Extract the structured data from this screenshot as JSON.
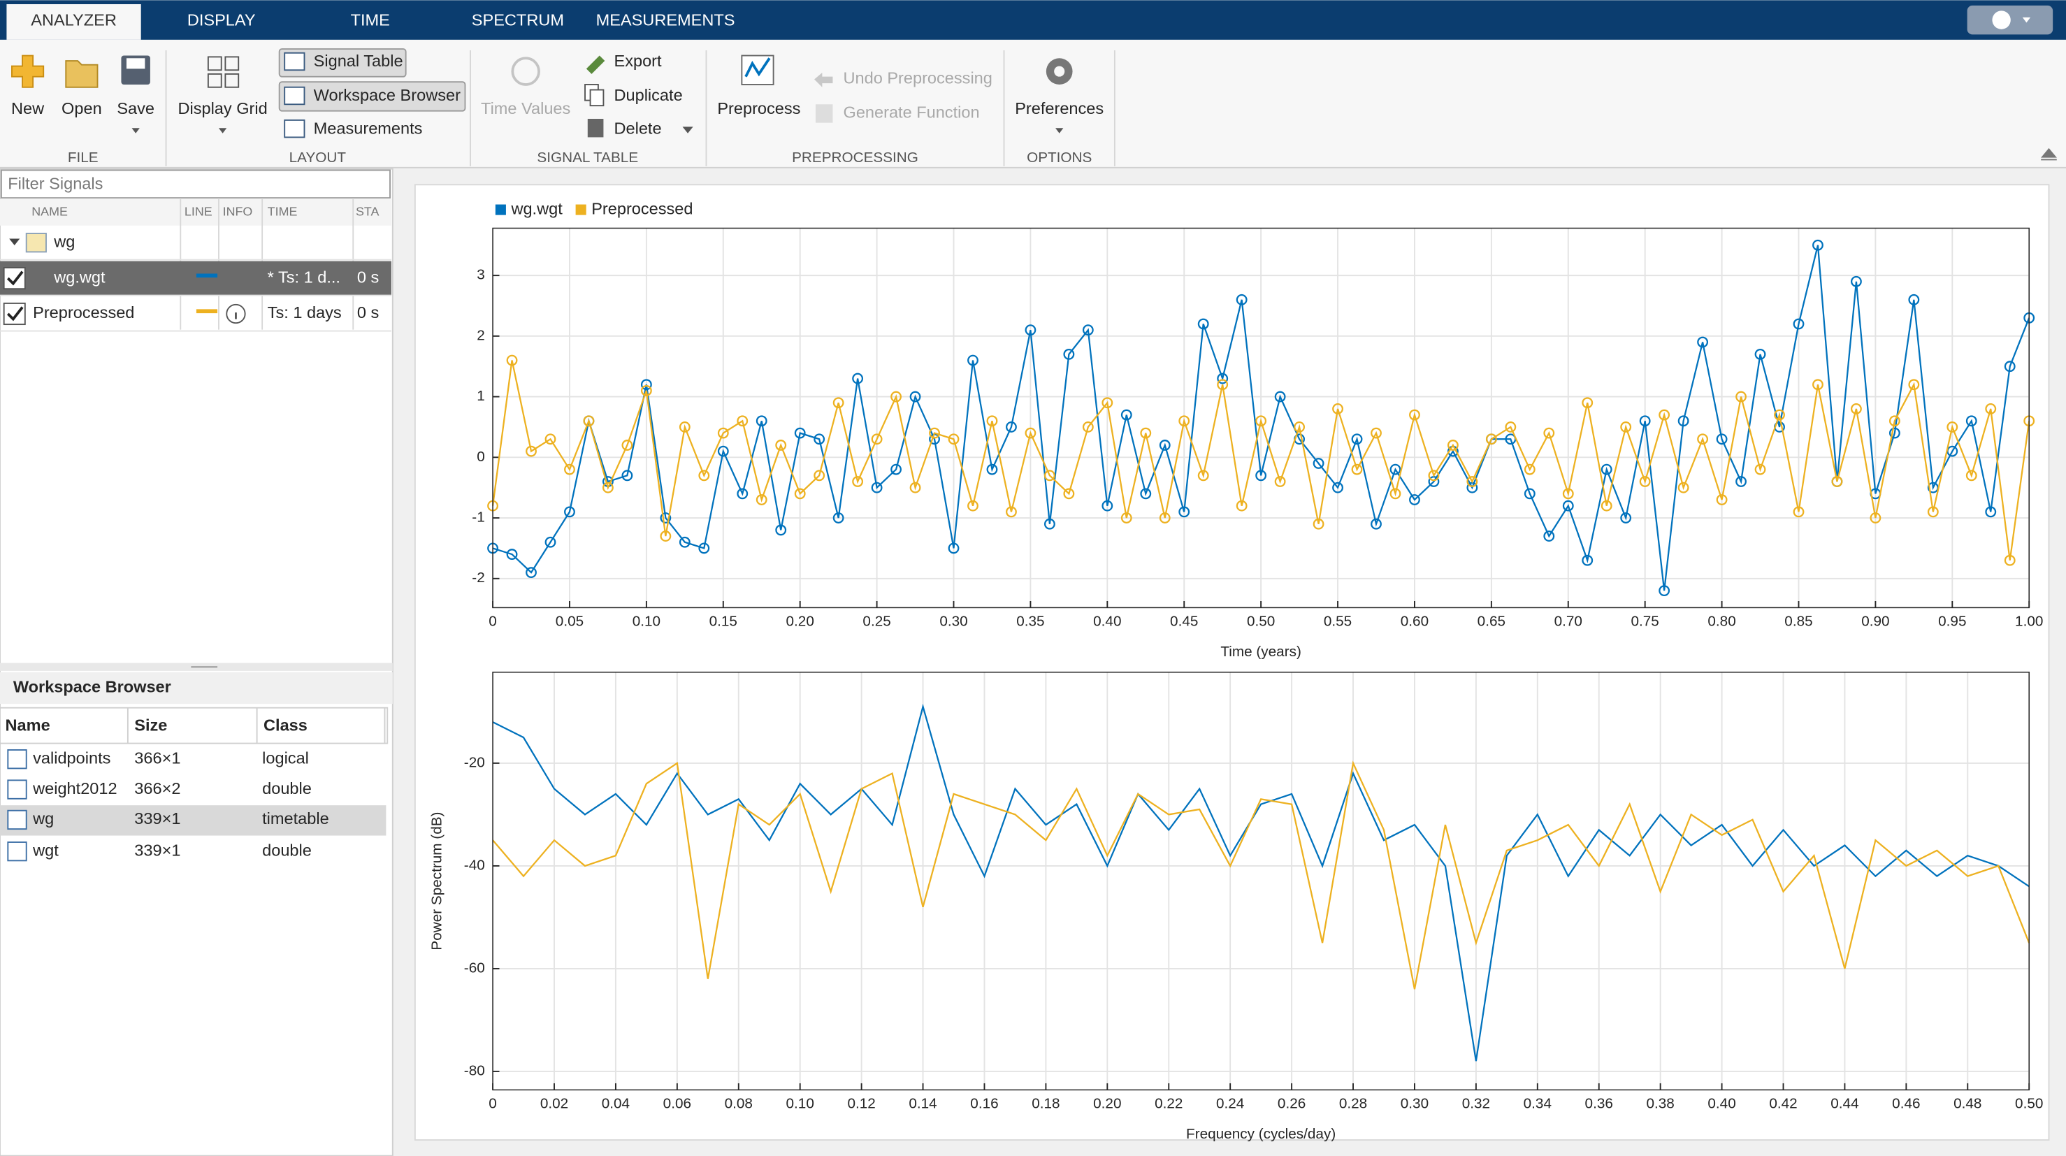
{
  "tabs": [
    "ANALYZER",
    "DISPLAY",
    "TIME",
    "SPECTRUM",
    "MEASUREMENTS"
  ],
  "active_tab": 0,
  "ribbon": [
    {
      "label": "FILE",
      "buttons": [
        "New",
        "Open",
        "Save"
      ]
    },
    {
      "label": "LAYOUT",
      "buttons": [
        "Display Grid",
        "Signal Table",
        "Workspace Browser",
        "Measurements"
      ]
    },
    {
      "label": "SIGNAL TABLE",
      "buttons": [
        "Time Values",
        "Export",
        "Duplicate",
        "Delete"
      ]
    },
    {
      "label": "PREPROCESSING",
      "buttons": [
        "Preprocess",
        "Undo Preprocessing",
        "Generate Function"
      ]
    },
    {
      "label": "OPTIONS",
      "buttons": [
        "Preferences"
      ]
    }
  ],
  "filter_placeholder": "Filter Signals",
  "signal_table": {
    "columns": [
      "NAME",
      "LINE",
      "INFO",
      "TIME",
      "STA"
    ],
    "rows": [
      {
        "name": "wg"
      },
      {
        "name": "wg.wgt",
        "checked": true,
        "selected": true,
        "line_color": "#0072bd",
        "time": "* Ts: 1 d...",
        "start": "0 s"
      },
      {
        "name": "Preprocessed",
        "checked": true,
        "line_color": "#edb120",
        "info": true,
        "time": "Ts: 1 days",
        "start": "0 s"
      }
    ]
  },
  "workspace_browser": {
    "title": "Workspace Browser",
    "columns": [
      "Name",
      "Size",
      "Class"
    ],
    "selected_row": 2,
    "rows": [
      [
        "validpoints",
        "366×1",
        "logical"
      ],
      [
        "weight2012",
        "366×2",
        "double"
      ],
      [
        "wg",
        "339×1",
        "timetable"
      ],
      [
        "wgt",
        "339×1",
        "double"
      ]
    ]
  },
  "chart_data": [
    {
      "type": "line",
      "markers": "circle",
      "legend": "top-left",
      "grid": true,
      "xlabel": "Time (years)",
      "x": [
        0,
        0.0125,
        0.025,
        0.0375,
        0.05,
        0.0625,
        0.075,
        0.0875,
        0.1,
        0.1125,
        0.125,
        0.1375,
        0.15,
        0.1625,
        0.175,
        0.1875,
        0.2,
        0.2125,
        0.225,
        0.2375,
        0.25,
        0.2625,
        0.275,
        0.2875,
        0.3,
        0.3125,
        0.325,
        0.3375,
        0.35,
        0.3625,
        0.375,
        0.3875,
        0.4,
        0.4125,
        0.425,
        0.4375,
        0.45,
        0.4625,
        0.475,
        0.4875,
        0.5,
        0.5125,
        0.525,
        0.5375,
        0.55,
        0.5625,
        0.575,
        0.5875,
        0.6,
        0.6125,
        0.625,
        0.6375,
        0.65,
        0.6625,
        0.675,
        0.6875,
        0.7,
        0.7125,
        0.725,
        0.7375,
        0.75,
        0.7625,
        0.775,
        0.7875,
        0.8,
        0.8125,
        0.825,
        0.8375,
        0.85,
        0.8625,
        0.875,
        0.8875,
        0.9,
        0.9125,
        0.925,
        0.9375,
        0.95,
        0.9625,
        0.975,
        0.9875,
        1
      ],
      "series": [
        {
          "name": "wg.wgt",
          "color": "#0072bd",
          "values": [
            -1.5,
            -1.6,
            -1.9,
            -1.4,
            -0.9,
            0.6,
            -0.4,
            -0.3,
            1.2,
            -1.0,
            -1.4,
            -1.5,
            0.1,
            -0.6,
            0.6,
            -1.2,
            0.4,
            0.3,
            -1.0,
            1.3,
            -0.5,
            -0.2,
            1.0,
            0.3,
            -1.5,
            1.6,
            -0.2,
            0.5,
            2.1,
            -1.1,
            1.7,
            2.1,
            -0.8,
            0.7,
            -0.6,
            0.2,
            -0.9,
            2.2,
            1.3,
            2.6,
            -0.3,
            1.0,
            0.3,
            -0.1,
            -0.5,
            0.3,
            -1.1,
            -0.2,
            -0.7,
            -0.4,
            0.1,
            -0.5,
            0.3,
            0.3,
            -0.6,
            -1.3,
            -0.8,
            -1.7,
            -0.2,
            -1.0,
            0.6,
            -2.2,
            0.6,
            1.9,
            0.3,
            -0.4,
            1.7,
            0.5,
            2.2,
            3.5,
            -0.4,
            2.9,
            -0.6,
            0.4,
            2.6,
            -0.5,
            0.1,
            0.6,
            -0.9,
            1.5,
            2.3
          ]
        },
        {
          "name": "Preprocessed",
          "color": "#edb120",
          "values": [
            -0.8,
            1.6,
            0.1,
            0.3,
            -0.2,
            0.6,
            -0.5,
            0.2,
            1.1,
            -1.3,
            0.5,
            -0.3,
            0.4,
            0.6,
            -0.7,
            0.2,
            -0.6,
            -0.3,
            0.9,
            -0.4,
            0.3,
            1.0,
            -0.5,
            0.4,
            0.3,
            -0.8,
            0.6,
            -0.9,
            0.4,
            -0.3,
            -0.6,
            0.5,
            0.9,
            -1.0,
            0.4,
            -1.0,
            0.6,
            -0.3,
            1.2,
            -0.8,
            0.6,
            -0.4,
            0.5,
            -1.1,
            0.8,
            -0.2,
            0.4,
            -0.6,
            0.7,
            -0.3,
            0.2,
            -0.4,
            0.3,
            0.5,
            -0.2,
            0.4,
            -0.6,
            0.9,
            -0.8,
            0.5,
            -0.4,
            0.7,
            -0.5,
            0.3,
            -0.7,
            1.0,
            -0.2,
            0.7,
            -0.9,
            1.2,
            -0.4,
            0.8,
            -1.0,
            0.6,
            1.2,
            -0.9,
            0.5,
            -0.3,
            0.8,
            -1.7,
            0.6
          ]
        }
      ],
      "xlim": [
        0,
        1
      ],
      "ylim": [
        -2.48,
        3.78
      ],
      "xticks": [
        0,
        0.05,
        {
          "value": 0.1,
          "label": "0.10"
        },
        0.15,
        {
          "value": 0.2,
          "label": "0.20"
        },
        0.25,
        {
          "value": 0.3,
          "label": "0.30"
        },
        0.35,
        {
          "value": 0.4,
          "label": "0.40"
        },
        0.45,
        {
          "value": 0.5,
          "label": "0.50"
        },
        0.55,
        {
          "value": 0.6,
          "label": "0.60"
        },
        0.65,
        {
          "value": 0.7,
          "label": "0.70"
        },
        0.75,
        {
          "value": 0.8,
          "label": "0.80"
        },
        0.85,
        {
          "value": 0.9,
          "label": "0.90"
        },
        0.95,
        {
          "value": 1,
          "label": "1.00"
        }
      ],
      "yticks": [
        -2,
        -1,
        0,
        1,
        2,
        3
      ]
    },
    {
      "type": "line",
      "grid": true,
      "xlabel": "Frequency (cycles/day)",
      "ylabel": "Power Spectrum (dB)",
      "x": [
        0,
        0.01,
        0.02,
        0.03,
        0.04,
        0.05,
        0.06,
        0.07,
        0.08,
        0.09,
        0.1,
        0.11,
        0.12,
        0.13,
        0.14,
        0.15,
        0.16,
        0.17,
        0.18,
        0.19,
        0.2,
        0.21,
        0.22,
        0.23,
        0.24,
        0.25,
        0.26,
        0.27,
        0.28,
        0.29,
        0.3,
        0.31,
        0.32,
        0.33,
        0.34,
        0.35,
        0.36,
        0.37,
        0.38,
        0.39,
        0.4,
        0.41,
        0.42,
        0.43,
        0.44,
        0.45,
        0.46,
        0.47,
        0.48,
        0.49,
        0.5
      ],
      "series": [
        {
          "color": "#0072bd",
          "values": [
            -12,
            -15,
            -25,
            -30,
            -26,
            -32,
            -22,
            -30,
            -27,
            -35,
            -24,
            -30,
            -25,
            -32,
            -9,
            -30,
            -42,
            -25,
            -32,
            -28,
            -40,
            -26,
            -33,
            -25,
            -38,
            -28,
            -26,
            -40,
            -22,
            -35,
            -32,
            -40,
            -78,
            -38,
            -30,
            -42,
            -33,
            -38,
            -30,
            -36,
            -32,
            -40,
            -33,
            -40,
            -36,
            -42,
            -37,
            -42,
            -38,
            -40,
            -44
          ]
        },
        {
          "color": "#edb120",
          "values": [
            -35,
            -42,
            -35,
            -40,
            -38,
            -24,
            -20,
            -62,
            -28,
            -32,
            -26,
            -45,
            -25,
            -22,
            -48,
            -26,
            -28,
            -30,
            -35,
            -25,
            -38,
            -26,
            -30,
            -29,
            -40,
            -27,
            -28,
            -55,
            -20,
            -33,
            -64,
            -32,
            -55,
            -37,
            -35,
            -32,
            -40,
            -28,
            -45,
            -30,
            -34,
            -31,
            -45,
            -38,
            -60,
            -35,
            -40,
            -37,
            -42,
            -40,
            -55
          ]
        }
      ],
      "xlim": [
        0,
        0.5
      ],
      "ylim": [
        -83.6,
        -2.3
      ],
      "xticks": [
        0,
        0.02,
        0.04,
        0.06,
        0.08,
        {
          "value": 0.1,
          "label": "0.10"
        },
        0.12,
        0.14,
        0.16,
        0.18,
        {
          "value": 0.2,
          "label": "0.20"
        },
        0.22,
        0.24,
        0.26,
        0.28,
        {
          "value": 0.3,
          "label": "0.30"
        },
        0.32,
        0.34,
        0.36,
        0.38,
        {
          "value": 0.4,
          "label": "0.40"
        },
        0.42,
        0.44,
        0.46,
        0.48,
        {
          "value": 0.5,
          "label": "0.50"
        }
      ],
      "yticks": [
        -20,
        -40,
        -60,
        -80
      ]
    }
  ]
}
